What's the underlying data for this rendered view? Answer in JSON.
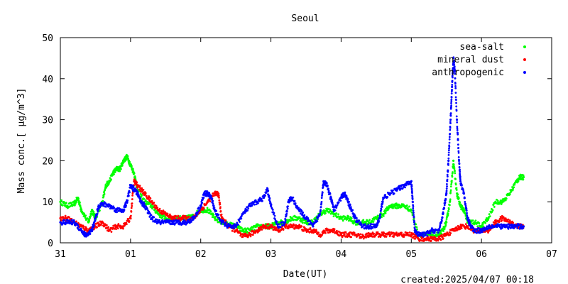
{
  "chart_data": {
    "type": "scatter",
    "title": "Seoul",
    "xlabel": "Date(UT)",
    "ylabel": "Mass conc.[ μg/m^3]",
    "footer": "created:2025/04/07 00:18",
    "x_ticks": [
      "31",
      "01",
      "02",
      "03",
      "04",
      "05",
      "06",
      "07"
    ],
    "y_ticks": [
      "0",
      "10",
      "20",
      "30",
      "40",
      "50"
    ],
    "xlim": [
      0,
      7
    ],
    "ylim": [
      0,
      50
    ],
    "legend_position": "top-right",
    "series": [
      {
        "name": "sea-salt",
        "color": "#00ff00",
        "points": [
          [
            0.0,
            10
          ],
          [
            0.1,
            9
          ],
          [
            0.2,
            9.5
          ],
          [
            0.25,
            11
          ],
          [
            0.3,
            8
          ],
          [
            0.4,
            5
          ],
          [
            0.45,
            8
          ],
          [
            0.5,
            6
          ],
          [
            0.6,
            10
          ],
          [
            0.65,
            14
          ],
          [
            0.7,
            15
          ],
          [
            0.75,
            17
          ],
          [
            0.8,
            18
          ],
          [
            0.85,
            18
          ],
          [
            0.9,
            20
          ],
          [
            0.95,
            21
          ],
          [
            1.0,
            19
          ],
          [
            1.05,
            17
          ],
          [
            1.1,
            13
          ],
          [
            1.2,
            10
          ],
          [
            1.3,
            9
          ],
          [
            1.4,
            7
          ],
          [
            1.5,
            6
          ],
          [
            1.6,
            6
          ],
          [
            1.7,
            6
          ],
          [
            1.8,
            6
          ],
          [
            1.9,
            6.5
          ],
          [
            2.0,
            8
          ],
          [
            2.1,
            8
          ],
          [
            2.2,
            6
          ],
          [
            2.3,
            5
          ],
          [
            2.4,
            4.5
          ],
          [
            2.5,
            4
          ],
          [
            2.6,
            3
          ],
          [
            2.7,
            3
          ],
          [
            2.8,
            4
          ],
          [
            2.9,
            4
          ],
          [
            3.0,
            4
          ],
          [
            3.1,
            5
          ],
          [
            3.2,
            5
          ],
          [
            3.3,
            6
          ],
          [
            3.4,
            6
          ],
          [
            3.5,
            5
          ],
          [
            3.6,
            5
          ],
          [
            3.7,
            7
          ],
          [
            3.8,
            8
          ],
          [
            3.9,
            7
          ],
          [
            4.0,
            6
          ],
          [
            4.1,
            6
          ],
          [
            4.2,
            5
          ],
          [
            4.3,
            5
          ],
          [
            4.4,
            5
          ],
          [
            4.5,
            6
          ],
          [
            4.6,
            7
          ],
          [
            4.7,
            9
          ],
          [
            4.8,
            9
          ],
          [
            4.9,
            9
          ],
          [
            5.0,
            8
          ],
          [
            5.1,
            2
          ],
          [
            5.2,
            2
          ],
          [
            5.3,
            2
          ],
          [
            5.4,
            2
          ],
          [
            5.45,
            3
          ],
          [
            5.5,
            5
          ],
          [
            5.55,
            10
          ],
          [
            5.6,
            20
          ],
          [
            5.65,
            12
          ],
          [
            5.7,
            9
          ],
          [
            5.75,
            8
          ],
          [
            5.8,
            5
          ],
          [
            5.9,
            5
          ],
          [
            6.0,
            4
          ],
          [
            6.1,
            6
          ],
          [
            6.2,
            10
          ],
          [
            6.3,
            10
          ],
          [
            6.4,
            12
          ],
          [
            6.5,
            15
          ],
          [
            6.55,
            16
          ],
          [
            6.6,
            16
          ]
        ]
      },
      {
        "name": "mineral dust",
        "color": "#ff0000",
        "points": [
          [
            0.0,
            6
          ],
          [
            0.1,
            6
          ],
          [
            0.2,
            5
          ],
          [
            0.3,
            4
          ],
          [
            0.4,
            3
          ],
          [
            0.5,
            4
          ],
          [
            0.6,
            5
          ],
          [
            0.7,
            3
          ],
          [
            0.8,
            4
          ],
          [
            0.9,
            4
          ],
          [
            1.0,
            6
          ],
          [
            1.05,
            15
          ],
          [
            1.1,
            14
          ],
          [
            1.2,
            12
          ],
          [
            1.3,
            10
          ],
          [
            1.4,
            8
          ],
          [
            1.5,
            7
          ],
          [
            1.6,
            6
          ],
          [
            1.7,
            6
          ],
          [
            1.8,
            6
          ],
          [
            1.9,
            6
          ],
          [
            2.0,
            8
          ],
          [
            2.1,
            10
          ],
          [
            2.2,
            12
          ],
          [
            2.25,
            12
          ],
          [
            2.3,
            6
          ],
          [
            2.4,
            4
          ],
          [
            2.5,
            3
          ],
          [
            2.6,
            1.5
          ],
          [
            2.7,
            2
          ],
          [
            2.8,
            3
          ],
          [
            2.9,
            4
          ],
          [
            3.0,
            4
          ],
          [
            3.1,
            3
          ],
          [
            3.2,
            4
          ],
          [
            3.3,
            4
          ],
          [
            3.4,
            4
          ],
          [
            3.5,
            3
          ],
          [
            3.6,
            3
          ],
          [
            3.7,
            2
          ],
          [
            3.8,
            3
          ],
          [
            3.9,
            3
          ],
          [
            4.0,
            2
          ],
          [
            4.1,
            2
          ],
          [
            4.2,
            2
          ],
          [
            4.3,
            1.5
          ],
          [
            4.4,
            2
          ],
          [
            4.5,
            2
          ],
          [
            4.6,
            2
          ],
          [
            4.7,
            2
          ],
          [
            4.8,
            2
          ],
          [
            4.9,
            2
          ],
          [
            5.0,
            2
          ],
          [
            5.1,
            1
          ],
          [
            5.2,
            1
          ],
          [
            5.3,
            1
          ],
          [
            5.4,
            1
          ],
          [
            5.5,
            2
          ],
          [
            5.6,
            3
          ],
          [
            5.7,
            4
          ],
          [
            5.8,
            4
          ],
          [
            5.9,
            3
          ],
          [
            6.0,
            3
          ],
          [
            6.1,
            3
          ],
          [
            6.2,
            5
          ],
          [
            6.3,
            6
          ],
          [
            6.4,
            5
          ],
          [
            6.5,
            4
          ],
          [
            6.6,
            4
          ]
        ]
      },
      {
        "name": "anthropogenic",
        "color": "#0000ff",
        "points": [
          [
            0.0,
            5
          ],
          [
            0.1,
            5
          ],
          [
            0.2,
            5
          ],
          [
            0.3,
            3
          ],
          [
            0.35,
            2
          ],
          [
            0.4,
            2
          ],
          [
            0.45,
            3
          ],
          [
            0.5,
            6
          ],
          [
            0.55,
            9
          ],
          [
            0.6,
            9.5
          ],
          [
            0.7,
            9
          ],
          [
            0.8,
            8
          ],
          [
            0.9,
            8
          ],
          [
            0.95,
            10
          ],
          [
            1.0,
            14
          ],
          [
            1.05,
            13
          ],
          [
            1.1,
            12
          ],
          [
            1.15,
            10
          ],
          [
            1.2,
            9
          ],
          [
            1.3,
            6
          ],
          [
            1.4,
            5
          ],
          [
            1.5,
            5
          ],
          [
            1.6,
            5
          ],
          [
            1.7,
            5
          ],
          [
            1.8,
            5
          ],
          [
            1.9,
            6
          ],
          [
            2.0,
            9
          ],
          [
            2.05,
            12
          ],
          [
            2.1,
            12
          ],
          [
            2.15,
            11
          ],
          [
            2.2,
            8
          ],
          [
            2.3,
            5
          ],
          [
            2.4,
            4
          ],
          [
            2.5,
            4
          ],
          [
            2.6,
            7
          ],
          [
            2.7,
            9
          ],
          [
            2.8,
            10
          ],
          [
            2.9,
            11
          ],
          [
            2.95,
            13
          ],
          [
            3.0,
            9
          ],
          [
            3.1,
            4
          ],
          [
            3.2,
            5
          ],
          [
            3.25,
            10
          ],
          [
            3.3,
            11
          ],
          [
            3.4,
            8
          ],
          [
            3.5,
            6
          ],
          [
            3.6,
            4
          ],
          [
            3.7,
            7
          ],
          [
            3.75,
            15
          ],
          [
            3.8,
            14
          ],
          [
            3.85,
            11
          ],
          [
            3.9,
            8
          ],
          [
            4.0,
            11
          ],
          [
            4.05,
            12
          ],
          [
            4.1,
            10
          ],
          [
            4.15,
            8
          ],
          [
            4.2,
            6
          ],
          [
            4.3,
            4
          ],
          [
            4.4,
            4
          ],
          [
            4.5,
            4
          ],
          [
            4.55,
            6
          ],
          [
            4.6,
            11
          ],
          [
            4.7,
            12
          ],
          [
            4.8,
            13
          ],
          [
            4.9,
            14
          ],
          [
            5.0,
            15
          ],
          [
            5.02,
            10
          ],
          [
            5.05,
            3
          ],
          [
            5.1,
            2
          ],
          [
            5.2,
            2
          ],
          [
            5.3,
            3
          ],
          [
            5.4,
            3
          ],
          [
            5.45,
            7
          ],
          [
            5.5,
            12
          ],
          [
            5.53,
            20
          ],
          [
            5.56,
            30
          ],
          [
            5.58,
            38
          ],
          [
            5.6,
            45
          ],
          [
            5.62,
            42
          ],
          [
            5.65,
            30
          ],
          [
            5.68,
            20
          ],
          [
            5.7,
            15
          ],
          [
            5.75,
            12
          ],
          [
            5.8,
            6
          ],
          [
            5.85,
            4
          ],
          [
            5.9,
            3
          ],
          [
            6.0,
            3
          ],
          [
            6.1,
            4
          ],
          [
            6.2,
            4
          ],
          [
            6.3,
            4
          ],
          [
            6.4,
            4
          ],
          [
            6.5,
            4
          ],
          [
            6.6,
            4
          ]
        ]
      }
    ]
  }
}
